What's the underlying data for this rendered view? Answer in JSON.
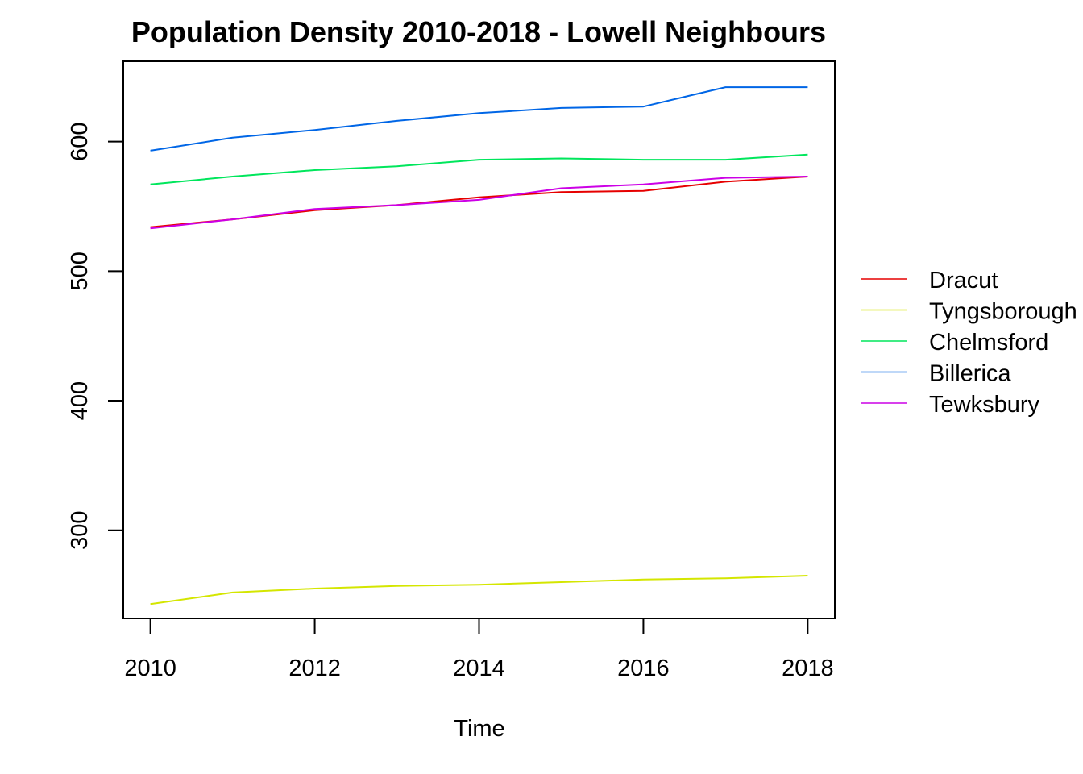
{
  "chart_data": {
    "type": "line",
    "title": "Population Density 2010-2018 - Lowell Neighbours",
    "xlabel": "Time",
    "ylabel": "",
    "x": [
      2010,
      2011,
      2012,
      2013,
      2014,
      2015,
      2016,
      2017,
      2018
    ],
    "x_ticks": [
      2010,
      2012,
      2014,
      2016,
      2018
    ],
    "y_ticks": [
      300,
      400,
      500,
      600
    ],
    "xlim": [
      2009.67,
      2018.33
    ],
    "ylim": [
      232,
      662
    ],
    "grid": false,
    "legend_position": "right",
    "series": [
      {
        "name": "Dracut",
        "color": "#E60000",
        "values": [
          534,
          540,
          547,
          551,
          557,
          561,
          562,
          569,
          573
        ]
      },
      {
        "name": "Tyngsborough",
        "color": "#D4E600",
        "values": [
          243,
          252,
          255,
          257,
          258,
          260,
          262,
          263,
          265
        ]
      },
      {
        "name": "Chelmsford",
        "color": "#00E65C",
        "values": [
          567,
          573,
          578,
          581,
          586,
          587,
          586,
          586,
          590
        ]
      },
      {
        "name": "Billerica",
        "color": "#0066E6",
        "values": [
          593,
          603,
          609,
          616,
          622,
          626,
          627,
          642,
          642
        ]
      },
      {
        "name": "Tewksbury",
        "color": "#CC00E6",
        "values": [
          533,
          540,
          548,
          551,
          555,
          564,
          567,
          572,
          573
        ]
      }
    ]
  }
}
